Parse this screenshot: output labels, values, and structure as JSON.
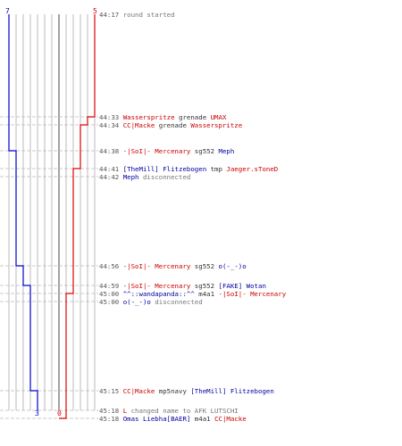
{
  "colors": {
    "red_team": "#cc0000",
    "blue_team": "#00009e",
    "timestamp": "#555555",
    "info": "#777777",
    "grid": "#aaaaaa",
    "event_line": "#b8b8b8",
    "background": "#ffffff"
  },
  "scores": {
    "blue_start": "7",
    "red_start": "5",
    "blue_end": "3",
    "red_end": "0"
  },
  "events": [
    {
      "time": "44:17",
      "parts": [
        {
          "text": "round started",
          "c": "gray"
        }
      ]
    },
    {
      "time": "44:33",
      "parts": [
        {
          "text": "Wasserspritze",
          "c": "red"
        },
        {
          "text": " grenade ",
          "c": "dark"
        },
        {
          "text": "UMAX",
          "c": "red"
        }
      ]
    },
    {
      "time": "44:34",
      "parts": [
        {
          "text": "CC|Macke",
          "c": "red"
        },
        {
          "text": " grenade ",
          "c": "dark"
        },
        {
          "text": "Wasserspritze",
          "c": "red"
        }
      ]
    },
    {
      "time": "44:38",
      "parts": [
        {
          "text": "-|SoI|- Mercenary",
          "c": "red"
        },
        {
          "text": " sg552 ",
          "c": "dark"
        },
        {
          "text": "Meph",
          "c": "blue"
        }
      ]
    },
    {
      "time": "44:41",
      "parts": [
        {
          "text": "[TheMill] Flitzebogen",
          "c": "blue"
        },
        {
          "text": " tmp ",
          "c": "dark"
        },
        {
          "text": "Jaeger.sToneD",
          "c": "red"
        }
      ]
    },
    {
      "time": "44:42",
      "parts": [
        {
          "text": "Meph",
          "c": "blue"
        },
        {
          "text": " disconnected",
          "c": "gray"
        }
      ]
    },
    {
      "time": "44:56",
      "parts": [
        {
          "text": "-|SoI|- Mercenary",
          "c": "red"
        },
        {
          "text": " sg552 ",
          "c": "dark"
        },
        {
          "text": "o(-_-)o",
          "c": "blue"
        }
      ]
    },
    {
      "time": "44:59",
      "parts": [
        {
          "text": "-|SoI|- Mercenary",
          "c": "red"
        },
        {
          "text": " sg552 ",
          "c": "dark"
        },
        {
          "text": "[FAKE] Wotan",
          "c": "blue"
        }
      ]
    },
    {
      "time": "45:00",
      "parts": [
        {
          "text": "^^::wandapanda::^^",
          "c": "blue"
        },
        {
          "text": " m4a1 ",
          "c": "dark"
        },
        {
          "text": "-|SoI|- Mercenary",
          "c": "red"
        }
      ]
    },
    {
      "time": "45:00",
      "parts": [
        {
          "text": "o(-_-)o",
          "c": "blue"
        },
        {
          "text": " disconnected",
          "c": "gray"
        }
      ]
    },
    {
      "time": "45:15",
      "parts": [
        {
          "text": "CC|Macke",
          "c": "red"
        },
        {
          "text": " mp5navy ",
          "c": "dark"
        },
        {
          "text": "[TheMill] Flitzebogen",
          "c": "blue"
        }
      ]
    },
    {
      "time": "45:18",
      "parts": [
        {
          "text": "L",
          "c": "red"
        },
        {
          "text": " changed name to AFK LUTSCHI",
          "c": "gray"
        }
      ]
    },
    {
      "time": "45:18",
      "parts": [
        {
          "text": "Omas Liebha[BAER]",
          "c": "blue"
        },
        {
          "text": " m4a1 ",
          "c": "dark"
        },
        {
          "text": "CC|Macke",
          "c": "red"
        }
      ]
    }
  ]
}
